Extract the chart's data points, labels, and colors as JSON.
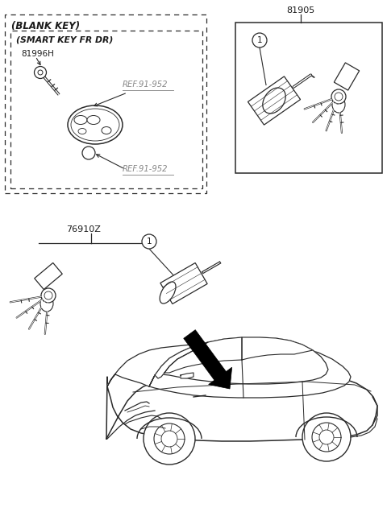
{
  "bg_color": "#ffffff",
  "lc": "#2a2a2a",
  "gray": "#888888",
  "dark": "#1a1a1a",
  "figsize": [
    4.8,
    6.31
  ],
  "dpi": 100,
  "labels": {
    "blank_key": "(BLANK KEY)",
    "smart_key": "(SMART KEY FR DR)",
    "p81996H": "81996H",
    "ref1": "REF.91-952",
    "ref2": "REF.91-952",
    "p81905": "81905",
    "p76910Z": "76910Z",
    "num1": "1"
  }
}
